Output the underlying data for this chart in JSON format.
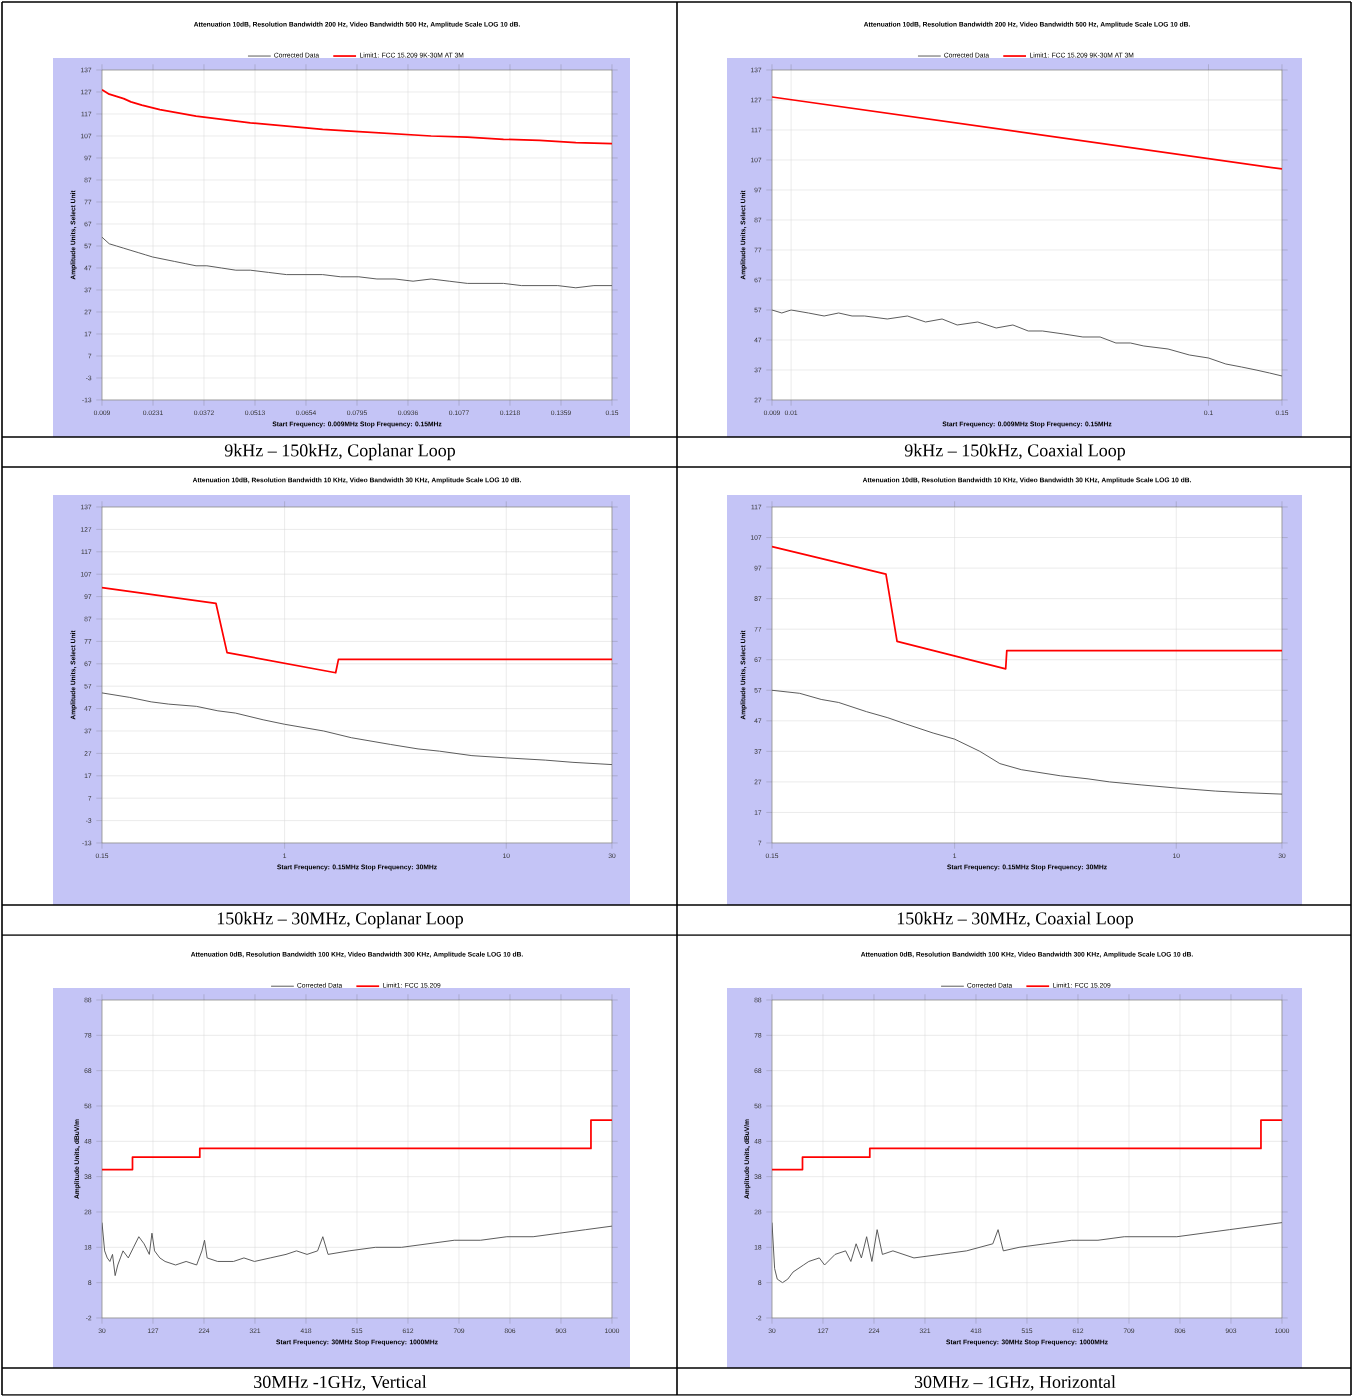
{
  "chart_data": [
    {
      "type": "line",
      "title": "Attenuation 10dB, Resolution Bandwidth 200 Hz, Video Bandwidth 500 Hz, Amplitude Scale LOG 10 dB.",
      "xlabel": "Start Frequency: 0.009MHz    Stop Frequency: 0.15MHz",
      "ylabel": "Amplitude Units, Select Unit",
      "annotations": [
        "9kHz – 150kHz, Coplanar Loop"
      ],
      "xlim": [
        0.009,
        0.15
      ],
      "ylim": [
        -13,
        137
      ],
      "xticks": [
        0.009,
        0.0231,
        0.0372,
        0.0513,
        0.0654,
        0.0795,
        0.0936,
        0.1077,
        0.1218,
        0.1359,
        0.15
      ],
      "yticks": [
        -13,
        -3,
        7,
        17,
        27,
        37,
        47,
        57,
        67,
        77,
        87,
        97,
        107,
        117,
        127,
        137
      ],
      "grid": true,
      "legend": "top",
      "series": [
        {
          "name": "Corrected Data",
          "color": "#505050",
          "x": [
            0.009,
            0.011,
            0.013,
            0.015,
            0.017,
            0.019,
            0.021,
            0.023,
            0.026,
            0.029,
            0.032,
            0.035,
            0.038,
            0.042,
            0.046,
            0.05,
            0.055,
            0.06,
            0.065,
            0.07,
            0.075,
            0.08,
            0.085,
            0.09,
            0.095,
            0.1,
            0.105,
            0.11,
            0.115,
            0.12,
            0.125,
            0.13,
            0.135,
            0.14,
            0.145,
            0.15
          ],
          "values": [
            61,
            58,
            57,
            56,
            55,
            54,
            53,
            52,
            51,
            50,
            49,
            48,
            48,
            47,
            46,
            46,
            45,
            44,
            44,
            44,
            43,
            43,
            42,
            42,
            41,
            42,
            41,
            40,
            40,
            40,
            39,
            39,
            39,
            38,
            39,
            39
          ]
        },
        {
          "name": "Limit1: FCC 15.209 9K-30M AT 3M",
          "color": "#ff0000",
          "x": [
            0.009,
            0.011,
            0.013,
            0.015,
            0.017,
            0.02,
            0.025,
            0.03,
            0.035,
            0.04,
            0.05,
            0.06,
            0.07,
            0.08,
            0.09,
            0.1,
            0.11,
            0.12,
            0.13,
            0.14,
            0.15
          ],
          "values": [
            128,
            126,
            125,
            124,
            122.5,
            121,
            119,
            117.5,
            116,
            115,
            113,
            111.5,
            110,
            109,
            108,
            107,
            106.5,
            105.5,
            105,
            104,
            103.5
          ]
        }
      ]
    },
    {
      "type": "line",
      "title": "Attenuation 10dB, Resolution Bandwidth 200 Hz, Video Bandwidth 500 Hz, Amplitude Scale LOG 10 dB.",
      "xlabel": "Start Frequency: 0.009MHz    Stop Frequency: 0.15MHz",
      "ylabel": "Amplitude Units, Select Unit",
      "annotations": [
        "9kHz – 150kHz, Coaxial Loop"
      ],
      "log": "x",
      "xlim": [
        0.009,
        0.15
      ],
      "ylim": [
        27,
        137
      ],
      "xticks": [
        0.009,
        0.01,
        0.1,
        0.15
      ],
      "yticks": [
        27,
        37,
        47,
        57,
        67,
        77,
        87,
        97,
        107,
        117,
        127,
        137
      ],
      "grid": true,
      "legend": "top",
      "series": [
        {
          "name": "Corrected Data",
          "color": "#505050",
          "x": [
            0.009,
            0.0095,
            0.01,
            0.011,
            0.012,
            0.013,
            0.014,
            0.015,
            0.017,
            0.019,
            0.021,
            0.023,
            0.025,
            0.028,
            0.031,
            0.034,
            0.037,
            0.04,
            0.045,
            0.05,
            0.055,
            0.06,
            0.065,
            0.07,
            0.08,
            0.09,
            0.1,
            0.11,
            0.12,
            0.13,
            0.14,
            0.15
          ],
          "values": [
            57,
            56,
            57,
            56,
            55,
            56,
            55,
            55,
            54,
            55,
            53,
            54,
            52,
            53,
            51,
            52,
            50,
            50,
            49,
            48,
            48,
            46,
            46,
            45,
            44,
            42,
            41,
            39,
            38,
            37,
            36,
            35
          ]
        },
        {
          "name": "Limit1: FCC 15.209 9K-30M AT 3M",
          "color": "#ff0000",
          "x": [
            0.009,
            0.15
          ],
          "values": [
            128,
            104
          ]
        }
      ]
    },
    {
      "type": "line",
      "title": "Attenuation 10dB, Resolution Bandwidth 10 KHz, Video Bandwidth 30 KHz, Amplitude Scale LOG 10 dB.",
      "xlabel": "Start Frequency: 0.15MHz    Stop Frequency: 30MHz",
      "ylabel": "Amplitude Units, Select Unit",
      "annotations": [
        "150kHz – 30MHz, Coplanar Loop"
      ],
      "log": "x",
      "xlim": [
        0.15,
        30
      ],
      "ylim": [
        -13,
        137
      ],
      "xticks": [
        0.15,
        1,
        10,
        30
      ],
      "yticks": [
        -13,
        -3,
        7,
        17,
        27,
        37,
        47,
        57,
        67,
        77,
        87,
        97,
        107,
        117,
        127,
        137
      ],
      "grid": true,
      "series": [
        {
          "color": "#505050",
          "x": [
            0.15,
            0.2,
            0.25,
            0.3,
            0.4,
            0.5,
            0.6,
            0.8,
            1,
            1.5,
            2,
            3,
            4,
            5,
            7,
            10,
            15,
            20,
            30
          ],
          "values": [
            54,
            52,
            50,
            49,
            48,
            46,
            45,
            42,
            40,
            37,
            34,
            31,
            29,
            28,
            26,
            25,
            24,
            23,
            22
          ]
        },
        {
          "color": "#ff0000",
          "x": [
            0.15,
            0.49,
            0.55,
            1.7,
            1.75,
            30
          ],
          "values": [
            101,
            94,
            72,
            63,
            69,
            69
          ]
        }
      ]
    },
    {
      "type": "line",
      "title": "Attenuation 10dB, Resolution Bandwidth 10 KHz, Video Bandwidth 30 KHz, Amplitude Scale LOG 10 dB.",
      "xlabel": "Start Frequency: 0.15MHz    Stop Frequency: 30MHz",
      "ylabel": "Amplitude Units, Select Unit",
      "annotations": [
        "150kHz – 30MHz, Coaxial Loop"
      ],
      "log": "x",
      "xlim": [
        0.15,
        30
      ],
      "ylim": [
        7,
        117
      ],
      "xticks": [
        0.15,
        1,
        10,
        30
      ],
      "yticks": [
        7,
        17,
        27,
        37,
        47,
        57,
        67,
        77,
        87,
        97,
        107,
        117
      ],
      "grid": true,
      "series": [
        {
          "color": "#505050",
          "x": [
            0.15,
            0.2,
            0.25,
            0.3,
            0.4,
            0.5,
            0.6,
            0.8,
            1,
            1.3,
            1.6,
            2,
            3,
            4,
            5,
            7,
            10,
            15,
            20,
            30
          ],
          "values": [
            57,
            56,
            54,
            53,
            50,
            48,
            46,
            43,
            41,
            37,
            33,
            31,
            29,
            28,
            27,
            26,
            25,
            24,
            23.5,
            23
          ]
        },
        {
          "color": "#ff0000",
          "x": [
            0.15,
            0.49,
            0.55,
            1.7,
            1.72,
            30
          ],
          "values": [
            104,
            95,
            73,
            64,
            70,
            70
          ]
        }
      ]
    },
    {
      "type": "line",
      "title": "Attenuation 0dB, Resolution Bandwidth 100 KHz, Video Bandwidth 300 KHz, Amplitude Scale LOG 10 dB.",
      "xlabel": "Start Frequency: 30MHz    Stop Frequency: 1000MHz",
      "ylabel": "Amplitude Units, dBuV/m",
      "annotations": [
        "30MHz -1GHz, Vertical"
      ],
      "xlim": [
        30,
        1000
      ],
      "ylim": [
        -2,
        88
      ],
      "xticks": [
        30,
        127,
        224,
        321,
        418,
        515,
        612,
        709,
        806,
        903,
        1000
      ],
      "yticks": [
        -2,
        8,
        18,
        28,
        38,
        48,
        58,
        68,
        78,
        88
      ],
      "grid": true,
      "legend": "top",
      "series": [
        {
          "name": "Corrected Data",
          "color": "#505050",
          "x": [
            30,
            35,
            40,
            45,
            50,
            55,
            60,
            65,
            70,
            80,
            90,
            100,
            110,
            120,
            125,
            130,
            140,
            150,
            170,
            190,
            210,
            220,
            225,
            230,
            250,
            280,
            300,
            320,
            350,
            380,
            400,
            420,
            440,
            450,
            460,
            500,
            550,
            600,
            650,
            700,
            750,
            800,
            850,
            900,
            950,
            1000
          ],
          "values": [
            25,
            17,
            15,
            14,
            16,
            10,
            13,
            15,
            17,
            15,
            18,
            21,
            19,
            16,
            22,
            17,
            15,
            14,
            13,
            14,
            13,
            17,
            20,
            15,
            14,
            14,
            15,
            14,
            15,
            16,
            17,
            16,
            17,
            21,
            16,
            17,
            18,
            18,
            19,
            20,
            20,
            21,
            21,
            22,
            23,
            24
          ]
        },
        {
          "name": "Limit1: FCC 15.209",
          "color": "#ff0000",
          "x": [
            30,
            88,
            88,
            216,
            216,
            960,
            960,
            1000
          ],
          "values": [
            40,
            40,
            43.5,
            43.5,
            46,
            46,
            54,
            54
          ]
        }
      ]
    },
    {
      "type": "line",
      "title": "Attenuation 0dB, Resolution Bandwidth 100 KHz, Video Bandwidth 300 KHz, Amplitude Scale LOG 10 dB.",
      "xlabel": "Start Frequency: 30MHz    Stop Frequency: 1000MHz",
      "ylabel": "Amplitude Units, dBuV/m",
      "annotations": [
        "30MHz – 1GHz, Horizontal"
      ],
      "xlim": [
        30,
        1000
      ],
      "ylim": [
        -2,
        88
      ],
      "xticks": [
        30,
        127,
        224,
        321,
        418,
        515,
        612,
        709,
        806,
        903,
        1000
      ],
      "yticks": [
        -2,
        8,
        18,
        28,
        38,
        48,
        58,
        68,
        78,
        88
      ],
      "grid": true,
      "legend": "top",
      "series": [
        {
          "name": "Corrected Data",
          "color": "#505050",
          "x": [
            30,
            35,
            40,
            50,
            60,
            70,
            90,
            100,
            120,
            130,
            150,
            170,
            180,
            190,
            200,
            210,
            220,
            230,
            240,
            260,
            300,
            350,
            400,
            450,
            460,
            470,
            500,
            550,
            600,
            650,
            700,
            750,
            800,
            850,
            900,
            950,
            1000
          ],
          "values": [
            25,
            12,
            9,
            8,
            9,
            11,
            13,
            14,
            15,
            13,
            16,
            17,
            14,
            19,
            15,
            21,
            14,
            23,
            16,
            17,
            15,
            16,
            17,
            19,
            23,
            17,
            18,
            19,
            20,
            20,
            21,
            21,
            21,
            22,
            23,
            24,
            25
          ]
        },
        {
          "name": "Limit1: FCC 15.209",
          "color": "#ff0000",
          "x": [
            30,
            88,
            88,
            216,
            216,
            960,
            960,
            1000
          ],
          "values": [
            40,
            40,
            43.5,
            43.5,
            46,
            46,
            54,
            54
          ]
        }
      ]
    }
  ]
}
